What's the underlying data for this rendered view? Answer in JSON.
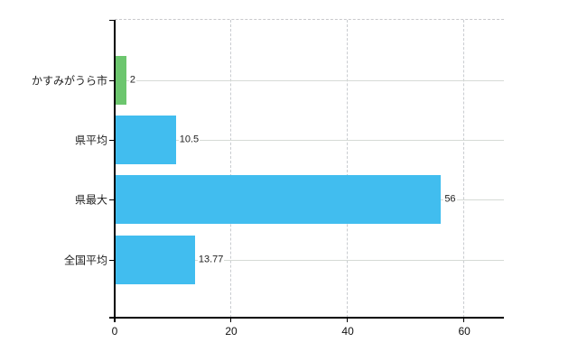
{
  "chart_data": {
    "type": "bar",
    "orientation": "horizontal",
    "title": "",
    "xlabel": "",
    "ylabel": "",
    "categories": [
      "かすみがうら市",
      "県平均",
      "県最大",
      "全国平均"
    ],
    "values": [
      2,
      10.5,
      56,
      13.77
    ],
    "value_labels": [
      "2",
      "10.5",
      "56",
      "13.77"
    ],
    "bar_colors": [
      "#6CC66E",
      "#41BDEF",
      "#41BDEF",
      "#41BDEF"
    ],
    "xlim": [
      0,
      66.8
    ],
    "x_ticks": [
      0,
      20,
      40,
      60
    ],
    "x_tick_labels": [
      "0",
      "20",
      "40",
      "60"
    ],
    "grid": true,
    "legend": false,
    "gridline_style": "horizontal solid, vertical dashed, dashed top border",
    "colors": {
      "highlight_bar": "#6CC66E",
      "default_bar": "#41BDEF",
      "axis": "#000000",
      "solid_gridline": "#d6dad6",
      "dashed_gridline": "#c9ccd0",
      "text": "#222222",
      "background": "#ffffff"
    }
  }
}
